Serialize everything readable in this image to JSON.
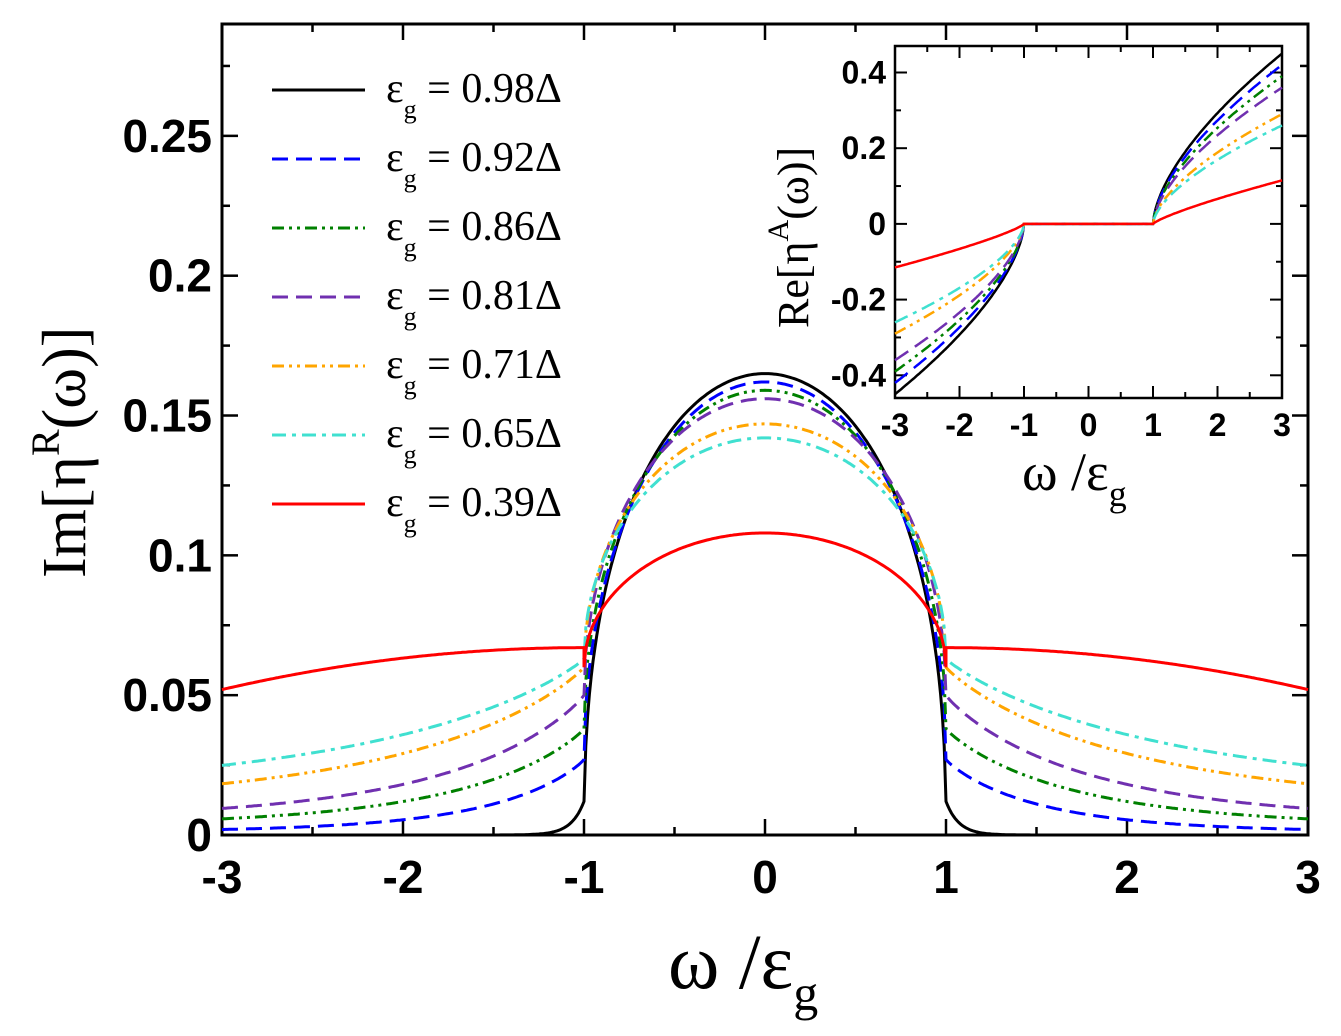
{
  "chart_data": [
    {
      "id": "main",
      "type": "line",
      "title": "",
      "xlabel": {
        "main": "ω /ε",
        "sub": "g"
      },
      "ylabel": {
        "prefix": "Im[η",
        "sup": "R",
        "suffix": "(ω)]"
      },
      "xlim": [
        -3,
        3
      ],
      "ylim": [
        0,
        0.29
      ],
      "xticks": [
        -3,
        -2,
        -1,
        0,
        1,
        2,
        3
      ],
      "xtick_labels": [
        "-3",
        "-2",
        "-1",
        "0",
        "1",
        "2",
        "3"
      ],
      "yticks": [
        0,
        0.05,
        0.1,
        0.15,
        0.2,
        0.25
      ],
      "ytick_labels": [
        "0",
        "0.05",
        "0.1",
        "0.15",
        "0.2",
        "0.25"
      ],
      "legend_position": "top-left",
      "grid": false,
      "series": [
        {
          "name": "0.98Δ",
          "legend_prefix": "ε",
          "legend_sub": "g",
          "legend_rest": " = 0.98Δ",
          "color": "#000000",
          "dash": "",
          "peak": 0.165,
          "edge": 0.0,
          "tail": 0.0,
          "sharp": true
        },
        {
          "name": "0.92Δ",
          "legend_prefix": "ε",
          "legend_sub": "g",
          "legend_rest": " = 0.92Δ",
          "color": "#0000ff",
          "dash": "16,8",
          "peak": 0.162,
          "edge": 0.027,
          "tail": 0.001
        },
        {
          "name": "0.86Δ",
          "legend_prefix": "ε",
          "legend_sub": "g",
          "legend_rest": " = 0.86Δ",
          "color": "#008000",
          "dash": "12,5,3,5,3,5",
          "peak": 0.159,
          "edge": 0.038,
          "tail": 0.003
        },
        {
          "name": "0.81Δ",
          "legend_prefix": "ε",
          "legend_sub": "g",
          "legend_rest": " = 0.81Δ",
          "color": "#7030b0",
          "dash": "16,8",
          "peak": 0.156,
          "edge": 0.05,
          "tail": 0.005
        },
        {
          "name": "0.71Δ",
          "legend_prefix": "ε",
          "legend_sub": "g",
          "legend_rest": " = 0.71Δ",
          "color": "#ffa500",
          "dash": "12,5,3,5,3,5",
          "peak": 0.147,
          "edge": 0.06,
          "tail": 0.01
        },
        {
          "name": "0.65Δ",
          "legend_prefix": "ε",
          "legend_sub": "g",
          "legend_rest": " = 0.65Δ",
          "color": "#40e0d0",
          "dash": "14,6,4,6",
          "peak": 0.142,
          "edge": 0.063,
          "tail": 0.014
        },
        {
          "name": "0.39Δ",
          "legend_prefix": "ε",
          "legend_sub": "g",
          "legend_rest": " = 0.39Δ",
          "color": "#ff0000",
          "dash": "",
          "peak": 0.108,
          "edge": 0.067,
          "edge_inner": 0.06,
          "tail": 0.052
        }
      ]
    },
    {
      "id": "inset",
      "type": "line",
      "title": "",
      "xlabel": {
        "main": "ω /ε",
        "sub": "g"
      },
      "ylabel": {
        "prefix": "Re[η",
        "sup": "A",
        "suffix": "(ω)]"
      },
      "xlim": [
        -3,
        3
      ],
      "ylim": [
        -0.46,
        0.47
      ],
      "xticks": [
        -3,
        -2,
        -1,
        0,
        1,
        2,
        3
      ],
      "xtick_labels": [
        "-3",
        "-2",
        "-1",
        "0",
        "1",
        "2",
        "3"
      ],
      "yticks": [
        -0.4,
        -0.2,
        0,
        0.2,
        0.4
      ],
      "ytick_labels": [
        "-0.4",
        "-0.2",
        "0",
        "0.2",
        "0.4"
      ],
      "grid": false,
      "series": [
        {
          "name": "0.98Δ",
          "color": "#000000",
          "dash": "",
          "end_value": 0.45
        },
        {
          "name": "0.92Δ",
          "color": "#0000ff",
          "dash": "16,8",
          "end_value": 0.42
        },
        {
          "name": "0.86Δ",
          "color": "#008000",
          "dash": "12,5,3,5,3,5",
          "end_value": 0.39
        },
        {
          "name": "0.81Δ",
          "color": "#7030b0",
          "dash": "16,8",
          "end_value": 0.36
        },
        {
          "name": "0.71Δ",
          "color": "#ffa500",
          "dash": "12,5,3,5,3,5",
          "end_value": 0.29
        },
        {
          "name": "0.65Δ",
          "color": "#40e0d0",
          "dash": "14,6,4,6",
          "end_value": 0.26
        },
        {
          "name": "0.39Δ",
          "color": "#ff0000",
          "dash": "",
          "end_value": 0.115
        }
      ]
    }
  ]
}
